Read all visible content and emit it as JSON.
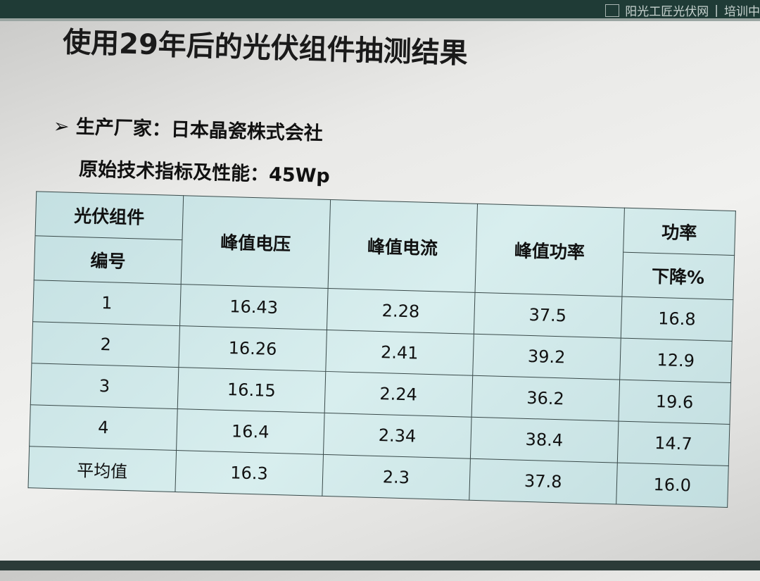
{
  "header": {
    "brand": "阳光工匠光伏网",
    "section": "培训中"
  },
  "slide": {
    "title": "使用29年后的光伏组件抽测结果",
    "bullet_icon": "arrow-bullet-icon",
    "manufacturer": "生产厂家：日本晶瓷株式会社",
    "spec": "原始技术指标及性能：45Wp"
  },
  "table": {
    "headers": {
      "module_line1": "光伏组件",
      "module_line2": "编号",
      "voltage": "峰值电压",
      "current": "峰值电流",
      "power": "峰值功率",
      "drop_line1": "功率",
      "drop_line2": "下降%"
    },
    "rows": [
      [
        "1",
        "16.43",
        "2.28",
        "37.5",
        "16.8"
      ],
      [
        "2",
        "16.26",
        "2.41",
        "39.2",
        "12.9"
      ],
      [
        "3",
        "16.15",
        "2.24",
        "36.2",
        "19.6"
      ],
      [
        "4",
        "16.4",
        "2.34",
        "38.4",
        "14.7"
      ],
      [
        "平均值",
        "16.3",
        "2.3",
        "37.8",
        "16.0"
      ]
    ]
  }
}
